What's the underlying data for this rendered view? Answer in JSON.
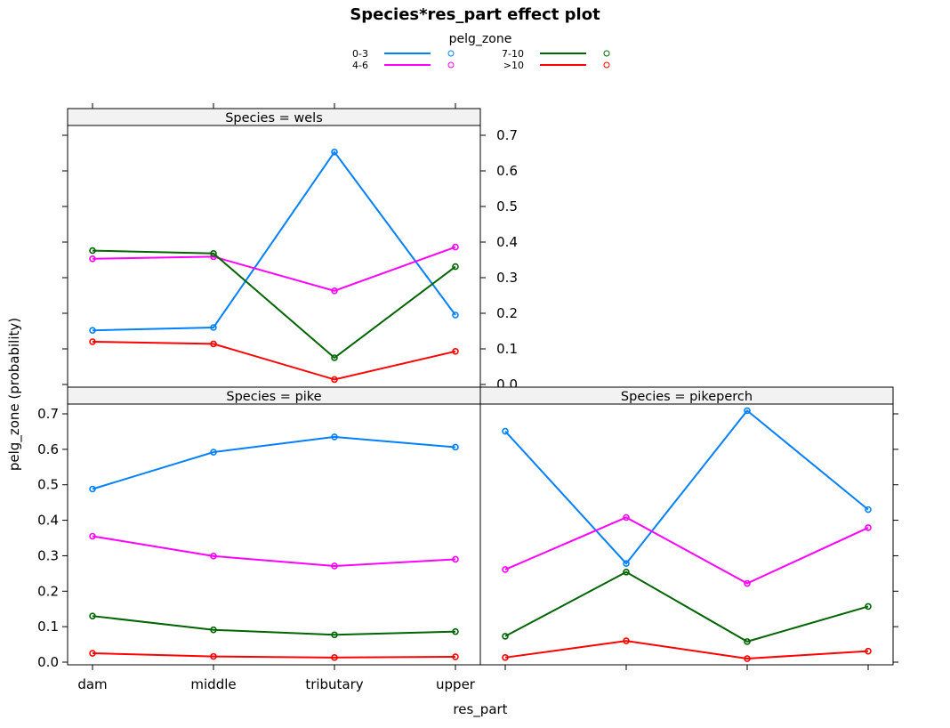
{
  "chart_data": {
    "type": "line",
    "title": "Species*res_part effect plot",
    "xlabel": "res_part",
    "ylabel": "pelg_zone (probability)",
    "categories": [
      "dam",
      "middle",
      "tributary",
      "upper"
    ],
    "y_ticks": [
      "0.0",
      "0.1",
      "0.2",
      "0.3",
      "0.4",
      "0.5",
      "0.6",
      "0.7"
    ],
    "ylim": [
      0,
      0.7
    ],
    "legend": {
      "title": "pelg_zone",
      "entries": [
        {
          "label": "0-3",
          "color": "#0080ff"
        },
        {
          "label": "4-6",
          "color": "#ff00ff"
        },
        {
          "label": "7-10",
          "color": "#006400"
        },
        {
          "label": ">10",
          "color": "#ff0000"
        }
      ]
    },
    "panels": [
      {
        "strip": "Species = wels",
        "series": [
          {
            "name": "0-3",
            "color": "#0080ff",
            "values": [
              0.152,
              0.16,
              0.653,
              0.195
            ]
          },
          {
            "name": "4-6",
            "color": "#ff00ff",
            "values": [
              0.353,
              0.359,
              0.263,
              0.386
            ]
          },
          {
            "name": "7-10",
            "color": "#006400",
            "values": [
              0.376,
              0.368,
              0.075,
              0.331
            ]
          },
          {
            "name": ">10",
            "color": "#ff0000",
            "values": [
              0.12,
              0.114,
              0.014,
              0.093
            ]
          }
        ]
      },
      {
        "strip": "Species = pike",
        "series": [
          {
            "name": "0-3",
            "color": "#0080ff",
            "values": [
              0.488,
              0.592,
              0.635,
              0.606
            ]
          },
          {
            "name": "4-6",
            "color": "#ff00ff",
            "values": [
              0.355,
              0.299,
              0.271,
              0.29
            ]
          },
          {
            "name": "7-10",
            "color": "#006400",
            "values": [
              0.13,
              0.091,
              0.077,
              0.086
            ]
          },
          {
            "name": ">10",
            "color": "#ff0000",
            "values": [
              0.025,
              0.016,
              0.013,
              0.015
            ]
          }
        ]
      },
      {
        "strip": "Species = pikeperch",
        "series": [
          {
            "name": "0-3",
            "color": "#0080ff",
            "values": [
              0.651,
              0.278,
              0.709,
              0.43
            ]
          },
          {
            "name": "4-6",
            "color": "#ff00ff",
            "values": [
              0.261,
              0.408,
              0.222,
              0.379
            ]
          },
          {
            "name": "7-10",
            "color": "#006400",
            "values": [
              0.073,
              0.254,
              0.058,
              0.157
            ]
          },
          {
            "name": ">10",
            "color": "#ff0000",
            "values": [
              0.013,
              0.06,
              0.01,
              0.031
            ]
          }
        ]
      }
    ]
  }
}
